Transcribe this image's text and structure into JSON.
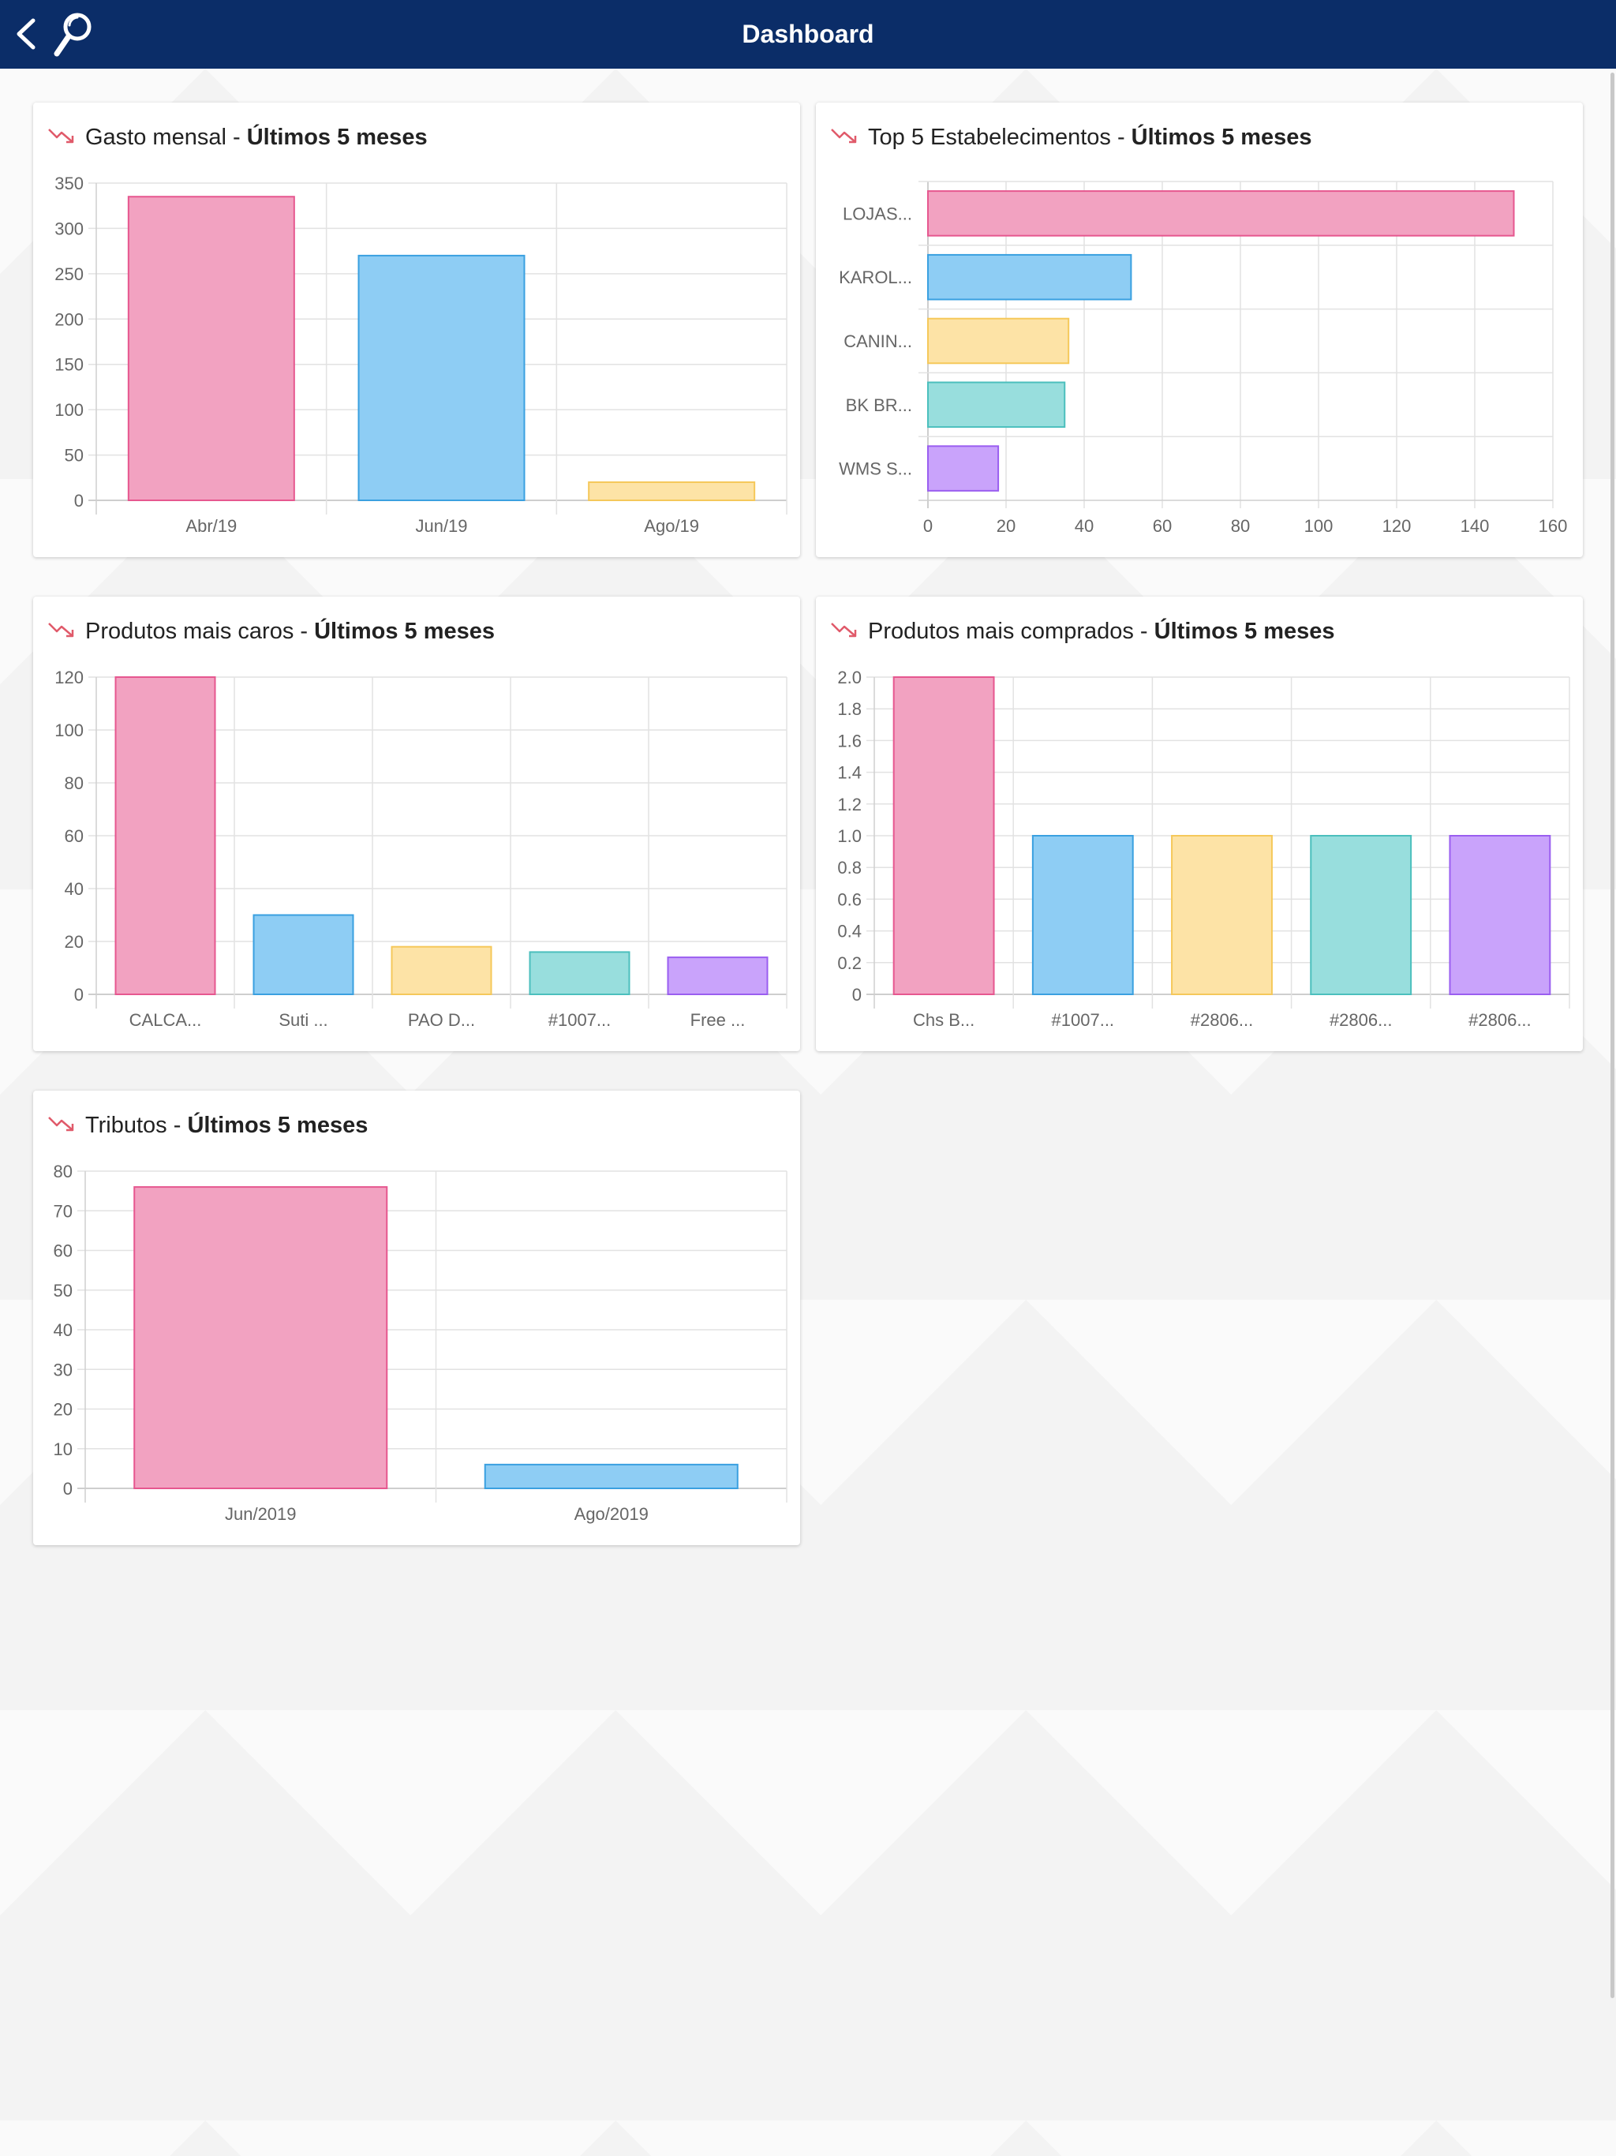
{
  "header": {
    "title": "Dashboard",
    "back_icon": "chevron-left-icon",
    "search_icon": "search-icon"
  },
  "colors": {
    "header_bg": "#0b2d68",
    "pink": "#f2a2c1",
    "pink_border": "#e6578f",
    "blue": "#8ecdf4",
    "blue_border": "#3aa0e0",
    "yellow": "#fde3a6",
    "yellow_border": "#f5c85a",
    "teal": "#98dedd",
    "teal_border": "#4bbfbd",
    "purple": "#c9a3fb",
    "purple_border": "#9a5ef0",
    "trend_icon": "#e05a6a"
  },
  "cards": [
    {
      "title_prefix": "Gasto mensal - ",
      "title_bold": "Últimos 5 meses"
    },
    {
      "title_prefix": "Top 5 Estabelecimentos - ",
      "title_bold": "Últimos 5 meses"
    },
    {
      "title_prefix": "Produtos mais caros - ",
      "title_bold": "Últimos 5 meses"
    },
    {
      "title_prefix": "Produtos mais comprados - ",
      "title_bold": "Últimos 5 meses"
    },
    {
      "title_prefix": "Tributos - ",
      "title_bold": "Últimos 5 meses"
    }
  ],
  "chart_data": [
    {
      "type": "bar",
      "title": "Gasto mensal - Últimos 5 meses",
      "categories": [
        "Abr/19",
        "Jun/19",
        "Ago/19"
      ],
      "values": [
        335,
        270,
        20
      ],
      "ylim": [
        0,
        350
      ],
      "yticks": [
        0,
        50,
        100,
        150,
        200,
        250,
        300,
        350
      ],
      "grid": true
    },
    {
      "type": "bar",
      "orientation": "horizontal",
      "title": "Top 5 Estabelecimentos - Últimos 5 meses",
      "categories": [
        "LOJAS...",
        "KAROL...",
        "CANIN...",
        "BK BR...",
        "WMS S..."
      ],
      "values": [
        150,
        52,
        36,
        35,
        18
      ],
      "xlim": [
        0,
        160
      ],
      "xticks": [
        0,
        20,
        40,
        60,
        80,
        100,
        120,
        140,
        160
      ],
      "grid": true
    },
    {
      "type": "bar",
      "title": "Produtos mais caros - Últimos 5 meses",
      "categories": [
        "CALCA...",
        "Suti ...",
        "PAO D...",
        "#1007...",
        "Free ..."
      ],
      "values": [
        120,
        30,
        18,
        16,
        14
      ],
      "ylim": [
        0,
        120
      ],
      "yticks": [
        0,
        20,
        40,
        60,
        80,
        100,
        120
      ],
      "grid": true
    },
    {
      "type": "bar",
      "title": "Produtos mais comprados - Últimos 5 meses",
      "categories": [
        "Chs B...",
        "#1007...",
        "#2806...",
        "#2806...",
        "#2806..."
      ],
      "values": [
        2.0,
        1.0,
        1.0,
        1.0,
        1.0
      ],
      "ylim": [
        0,
        2.0
      ],
      "yticks": [
        "0",
        "0.2",
        "0.4",
        "0.6",
        "0.8",
        "1.0",
        "1.2",
        "1.4",
        "1.6",
        "1.8",
        "2.0"
      ],
      "grid": true
    },
    {
      "type": "bar",
      "title": "Tributos - Últimos 5 meses",
      "categories": [
        "Jun/2019",
        "Ago/2019"
      ],
      "values": [
        76,
        6
      ],
      "ylim": [
        0,
        80
      ],
      "yticks": [
        0,
        10,
        20,
        30,
        40,
        50,
        60,
        70,
        80
      ],
      "grid": true
    }
  ]
}
